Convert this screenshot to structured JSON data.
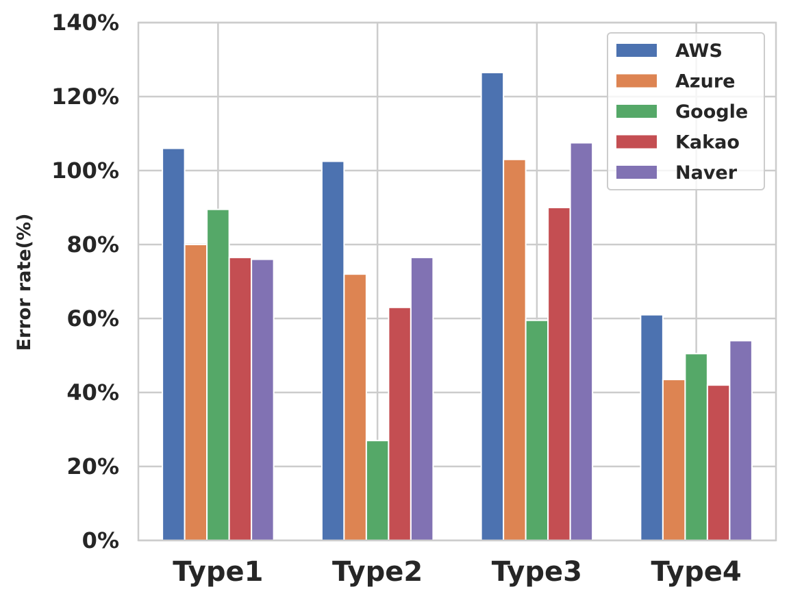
{
  "chart_data": {
    "type": "bar",
    "title": "",
    "xlabel": "",
    "ylabel": "Error rate(%)",
    "ylim": [
      0,
      140
    ],
    "y_ticks": [
      "0%",
      "20%",
      "40%",
      "60%",
      "80%",
      "100%",
      "120%",
      "140%"
    ],
    "y_tick_values": [
      0,
      20,
      40,
      60,
      80,
      100,
      120,
      140
    ],
    "categories": [
      "Type1",
      "Type2",
      "Type3",
      "Type4"
    ],
    "grid": true,
    "legend_position": "top-right",
    "series": [
      {
        "name": "AWS",
        "color": "#4c72b0",
        "values": [
          106.0,
          102.5,
          126.5,
          61.0
        ]
      },
      {
        "name": "Azure",
        "color": "#dd8452",
        "values": [
          80.0,
          72.0,
          103.0,
          43.5
        ]
      },
      {
        "name": "Google",
        "color": "#55a868",
        "values": [
          89.5,
          27.0,
          59.5,
          50.5
        ]
      },
      {
        "name": "Kakao",
        "color": "#c44e52",
        "values": [
          76.5,
          63.0,
          90.0,
          42.0
        ]
      },
      {
        "name": "Naver",
        "color": "#8172b3",
        "values": [
          76.0,
          76.5,
          107.5,
          54.0
        ]
      }
    ]
  }
}
